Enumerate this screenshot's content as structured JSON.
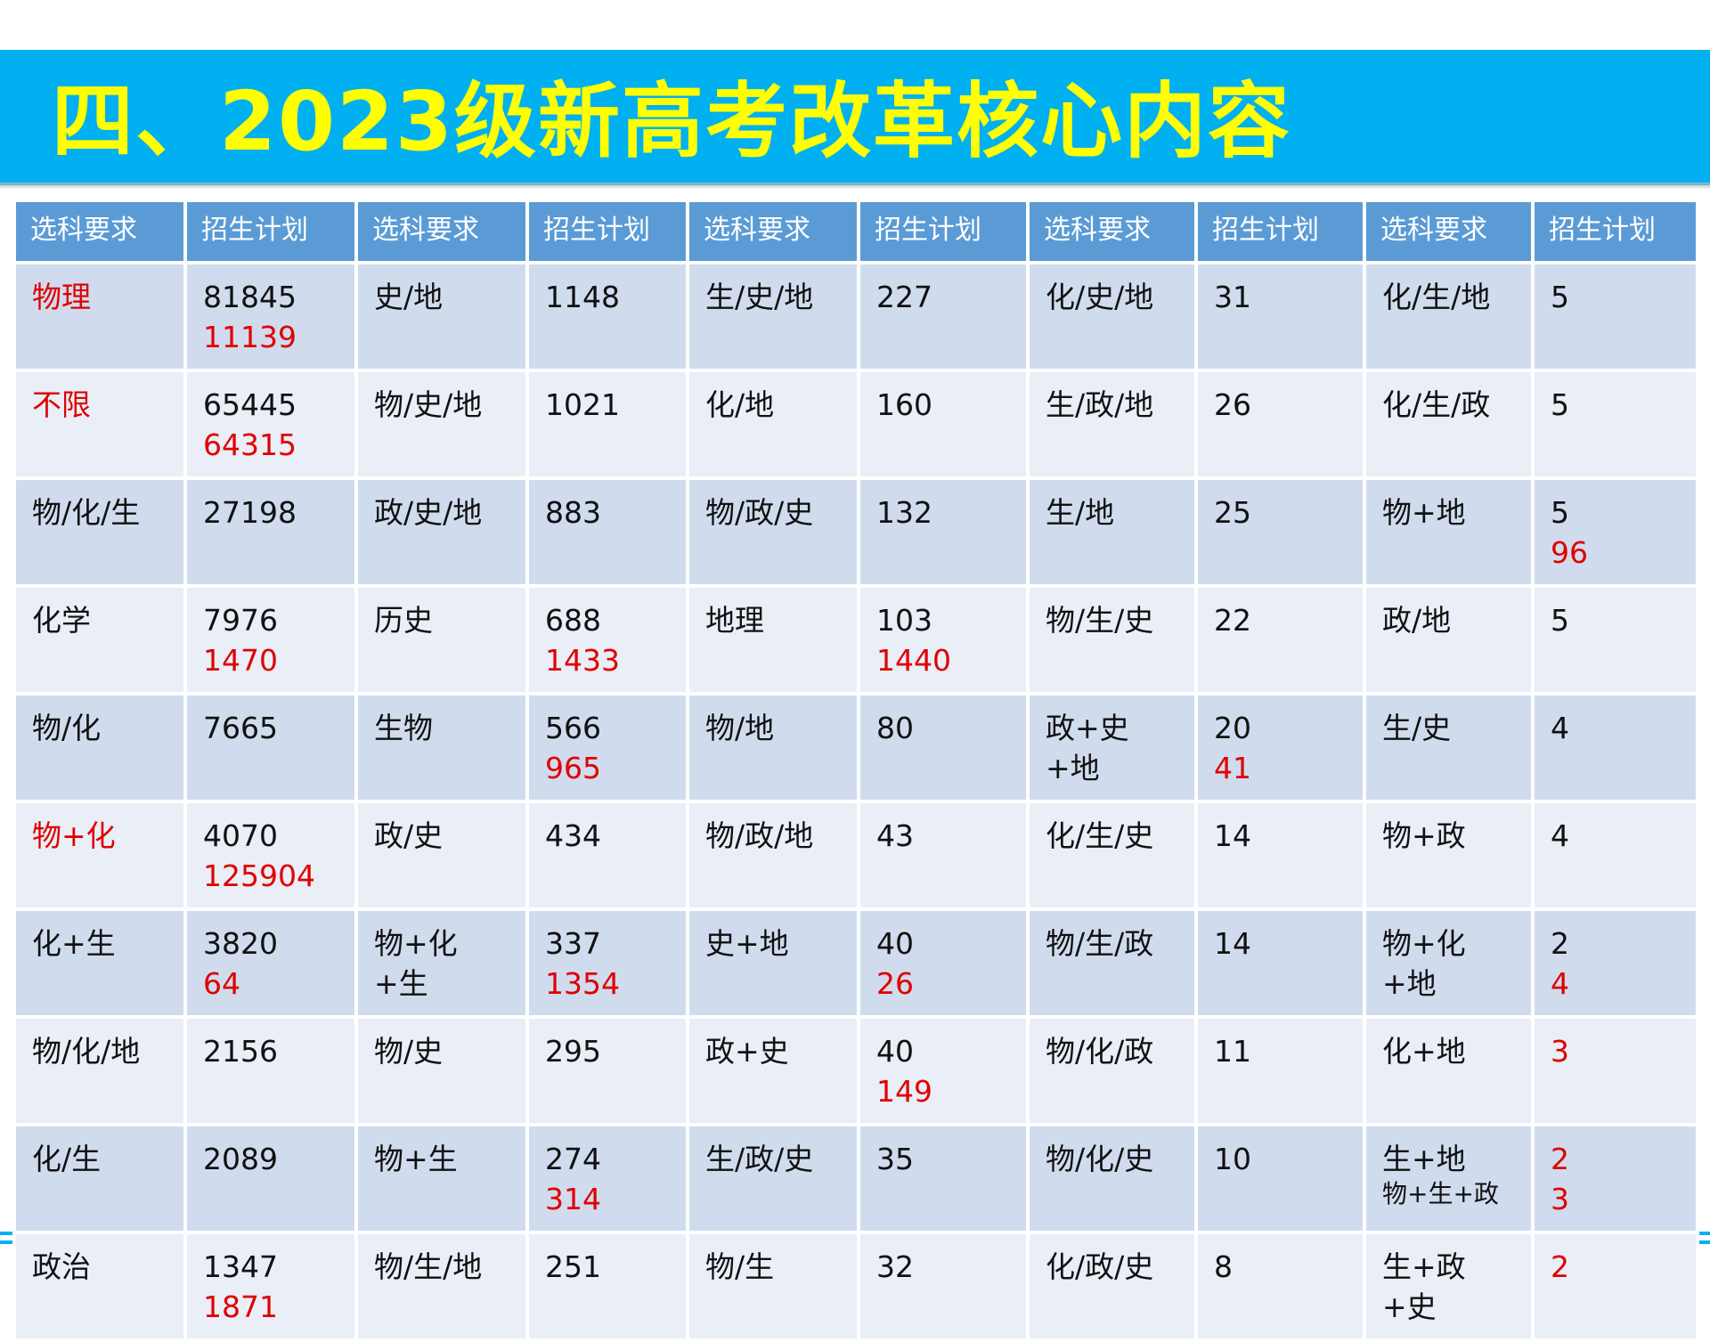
{
  "title": "四、2023级新高考改革核心内容",
  "headers": [
    "选科要求",
    "招生计划",
    "选科要求",
    "招生计划",
    "选科要求",
    "招生计划",
    "选科要求",
    "招生计划",
    "选科要求",
    "招生计划"
  ],
  "rows": [
    [
      {
        "text": "物理",
        "red": true
      },
      {
        "text": "81845",
        "extra": "11139"
      },
      {
        "text": "史/地"
      },
      {
        "text": "1148"
      },
      {
        "text": "生/史/地"
      },
      {
        "text": "227"
      },
      {
        "text": "化/史/地"
      },
      {
        "text": "31"
      },
      {
        "text": "化/生/地"
      },
      {
        "text": "5"
      }
    ],
    [
      {
        "text": "不限",
        "red": true
      },
      {
        "text": "65445",
        "extra": "64315"
      },
      {
        "text": "物/史/地"
      },
      {
        "text": "1021"
      },
      {
        "text": "化/地"
      },
      {
        "text": "160"
      },
      {
        "text": "生/政/地"
      },
      {
        "text": "26"
      },
      {
        "text": "化/生/政"
      },
      {
        "text": "5"
      }
    ],
    [
      {
        "text": "物/化/生"
      },
      {
        "text": "27198"
      },
      {
        "text": "政/史/地"
      },
      {
        "text": "883"
      },
      {
        "text": "物/政/史"
      },
      {
        "text": "132"
      },
      {
        "text": "生/地"
      },
      {
        "text": "25"
      },
      {
        "text": "物+地"
      },
      {
        "text": "5",
        "extra": "96"
      }
    ],
    [
      {
        "text": "化学"
      },
      {
        "text": "7976",
        "extra": "1470"
      },
      {
        "text": "历史"
      },
      {
        "text": "688",
        "extra": "1433"
      },
      {
        "text": "地理"
      },
      {
        "text": "103",
        "extra": "1440"
      },
      {
        "text": "物/生/史"
      },
      {
        "text": "22"
      },
      {
        "text": "政/地"
      },
      {
        "text": "5"
      }
    ],
    [
      {
        "text": "物/化"
      },
      {
        "text": "7665"
      },
      {
        "text": "生物"
      },
      {
        "text": "566",
        "extra": "965"
      },
      {
        "text": "物/地"
      },
      {
        "text": "80"
      },
      {
        "text": "政+史+地"
      },
      {
        "text": "20",
        "extra": "41"
      },
      {
        "text": "生/史"
      },
      {
        "text": "4"
      }
    ],
    [
      {
        "text": "物+化",
        "red": true
      },
      {
        "text": "4070",
        "extra": "125904"
      },
      {
        "text": "政/史"
      },
      {
        "text": "434"
      },
      {
        "text": "物/政/地"
      },
      {
        "text": "43"
      },
      {
        "text": "化/生/史"
      },
      {
        "text": "14"
      },
      {
        "text": "物+政"
      },
      {
        "text": "4"
      }
    ],
    [
      {
        "text": "化+生"
      },
      {
        "text": "3820",
        "extra": "64"
      },
      {
        "text": "物+化+生"
      },
      {
        "text": "337",
        "extra": "1354"
      },
      {
        "text": "史+地"
      },
      {
        "text": "40",
        "extra": "26"
      },
      {
        "text": "物/生/政"
      },
      {
        "text": "14"
      },
      {
        "text": "物+化+地"
      },
      {
        "text": "2",
        "extra": "4"
      }
    ],
    [
      {
        "text": "物/化/地"
      },
      {
        "text": "2156"
      },
      {
        "text": "物/史"
      },
      {
        "text": "295"
      },
      {
        "text": "政+史"
      },
      {
        "text": "40",
        "extra": "149"
      },
      {
        "text": "物/化/政"
      },
      {
        "text": "11"
      },
      {
        "text": "化+地"
      },
      {
        "text": "3",
        "red": true
      }
    ],
    [
      {
        "text": "化/生"
      },
      {
        "text": "2089"
      },
      {
        "text": "物+生"
      },
      {
        "text": "274",
        "extra": "314"
      },
      {
        "text": "生/政/史"
      },
      {
        "text": "35"
      },
      {
        "text": "物/化/史"
      },
      {
        "text": "10"
      },
      {
        "text": "生+地",
        "sub": "物+生+政"
      },
      {
        "text": "2",
        "extra": "3",
        "red": true
      }
    ],
    [
      {
        "text": "政治"
      },
      {
        "text": "1347",
        "extra": "1871"
      },
      {
        "text": "物/生/地"
      },
      {
        "text": "251"
      },
      {
        "text": "物/生"
      },
      {
        "text": "32"
      },
      {
        "text": "化/政/史"
      },
      {
        "text": "8"
      },
      {
        "text": "生+政+史"
      },
      {
        "text": "2",
        "red": true
      }
    ]
  ]
}
